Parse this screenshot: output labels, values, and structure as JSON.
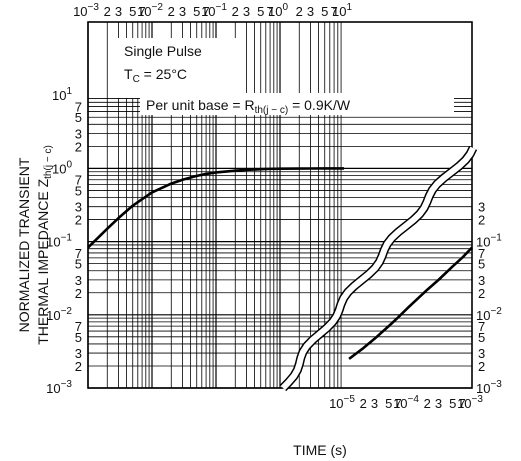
{
  "chart_data": {
    "type": "line",
    "x_scale": "log",
    "y_scale": "log",
    "xlabel": "TIME (s)",
    "ylabel_line1": "NORMALIZED TRANSIENT",
    "ylabel_line2": "THERMAL IMPEDANCE Z",
    "ylabel_sub": "th(j − c)",
    "annotations": {
      "single_pulse": "Single Pulse",
      "tc_main": "T",
      "tc_sub": "C",
      "tc_rest": " = 25°C",
      "base_main": "Per unit base = R",
      "base_sub": "th(j − c)",
      "base_rest": " = 0.9K/W"
    },
    "top_axis": {
      "range": [
        0.001,
        10
      ],
      "decade_labels": [
        {
          "base": "10",
          "exp": "−3"
        },
        {
          "base": "10",
          "exp": "−2"
        },
        {
          "base": "10",
          "exp": "−1"
        },
        {
          "base": "10",
          "exp": "0"
        },
        {
          "base": "10",
          "exp": "1"
        }
      ],
      "minor_labels": [
        "2",
        "3",
        "5",
        "7"
      ]
    },
    "bottom_axis": {
      "range": [
        1e-05,
        0.001
      ],
      "decade_labels": [
        {
          "base": "10",
          "exp": "−5"
        },
        {
          "base": "10",
          "exp": "−4"
        },
        {
          "base": "10",
          "exp": "−3"
        }
      ],
      "minor_labels": [
        "2",
        "3",
        "5",
        "7"
      ]
    },
    "left_axis": {
      "range": [
        0.001,
        10
      ],
      "decade_labels": [
        {
          "base": "10",
          "exp": "1"
        },
        {
          "base": "10",
          "exp": "0"
        },
        {
          "base": "10",
          "exp": "−1"
        },
        {
          "base": "10",
          "exp": "−2"
        },
        {
          "base": "10",
          "exp": "−3"
        }
      ],
      "minor_labels": [
        "7",
        "5",
        "3",
        "2"
      ]
    },
    "right_axis": {
      "range": [
        0.001,
        0.1
      ],
      "decade_labels": [
        {
          "base": "10",
          "exp": "−1"
        },
        {
          "base": "10",
          "exp": "−2"
        },
        {
          "base": "10",
          "exp": "−3"
        }
      ],
      "minor_labels": [
        "7",
        "5",
        "3",
        "2"
      ]
    },
    "series": [
      {
        "axes": "top-left",
        "x": [
          0.001,
          0.002,
          0.003,
          0.005,
          0.007,
          0.01,
          0.02,
          0.03,
          0.05,
          0.07,
          0.1,
          0.2,
          0.3,
          0.5,
          0.7,
          1,
          2,
          3,
          5,
          10
        ],
        "y": [
          0.083,
          0.15,
          0.21,
          0.31,
          0.38,
          0.47,
          0.62,
          0.7,
          0.79,
          0.84,
          0.88,
          0.93,
          0.955,
          0.975,
          0.985,
          0.99,
          0.995,
          0.997,
          0.999,
          1.0
        ]
      },
      {
        "axes": "bottom-right",
        "x": [
          1.2e-05,
          2e-05,
          3e-05,
          5e-05,
          7e-05,
          0.0001,
          0.0002,
          0.0003,
          0.0005,
          0.0007,
          0.001
        ],
        "y": [
          0.0025,
          0.0035,
          0.0047,
          0.007,
          0.0092,
          0.0125,
          0.022,
          0.03,
          0.046,
          0.06,
          0.083
        ]
      }
    ],
    "grid": true
  }
}
